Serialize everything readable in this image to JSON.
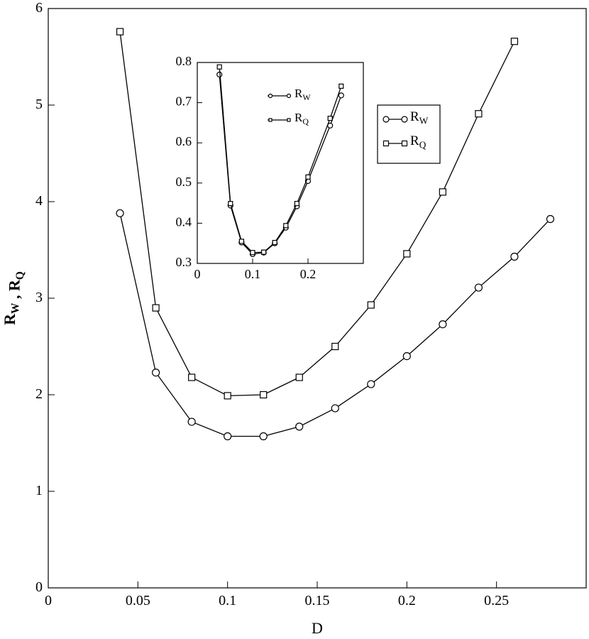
{
  "chart_data": [
    {
      "type": "line",
      "xlabel": "D",
      "ylabel": "RW , RQ",
      "xlim": [
        0,
        0.3
      ],
      "ylim": [
        0,
        6
      ],
      "xticks": [
        0,
        0.05,
        0.1,
        0.15,
        0.2,
        0.25
      ],
      "yticks": [
        0,
        1,
        2,
        3,
        4,
        5,
        6
      ],
      "legend": "right",
      "legend_frame": true,
      "series": [
        {
          "name": "RW",
          "color": "#000000",
          "marker": "circle",
          "x": [
            0.04,
            0.06,
            0.08,
            0.1,
            0.12,
            0.14,
            0.16,
            0.18,
            0.2,
            0.22,
            0.24,
            0.26,
            0.28
          ],
          "values": [
            3.88,
            2.23,
            1.72,
            1.57,
            1.57,
            1.67,
            1.86,
            2.11,
            2.4,
            2.73,
            3.11,
            3.43,
            3.82
          ]
        },
        {
          "name": "RQ",
          "color": "#000000",
          "marker": "square",
          "x": [
            0.04,
            0.06,
            0.08,
            0.1,
            0.12,
            0.14,
            0.16,
            0.18,
            0.2,
            0.22,
            0.24,
            0.26
          ],
          "values": [
            5.76,
            2.9,
            2.18,
            1.99,
            2.0,
            2.18,
            2.5,
            2.93,
            3.46,
            4.1,
            4.91,
            5.66
          ]
        }
      ]
    },
    {
      "type": "line",
      "xlim": [
        0,
        0.3
      ],
      "ylim": [
        0.3,
        0.8
      ],
      "xticks": [
        0,
        0.1,
        0.2
      ],
      "yticks": [
        0.3,
        0.4,
        0.5,
        0.6,
        0.7,
        0.8
      ],
      "legend": "upper center",
      "legend_frame": false,
      "series": [
        {
          "name": "RW",
          "color": "#000000",
          "marker": "circle",
          "x": [
            0.04,
            0.06,
            0.08,
            0.1,
            0.12,
            0.14,
            0.16,
            0.18,
            0.2,
            0.24,
            0.26
          ],
          "values": [
            0.77,
            0.444,
            0.352,
            0.323,
            0.327,
            0.35,
            0.389,
            0.442,
            0.505,
            0.643,
            0.718
          ]
        },
        {
          "name": "RQ",
          "color": "#000000",
          "marker": "square",
          "x": [
            0.04,
            0.06,
            0.08,
            0.1,
            0.12,
            0.14,
            0.16,
            0.18,
            0.2,
            0.24,
            0.26
          ],
          "values": [
            0.789,
            0.449,
            0.355,
            0.327,
            0.328,
            0.352,
            0.394,
            0.449,
            0.515,
            0.661,
            0.741
          ]
        }
      ]
    }
  ]
}
